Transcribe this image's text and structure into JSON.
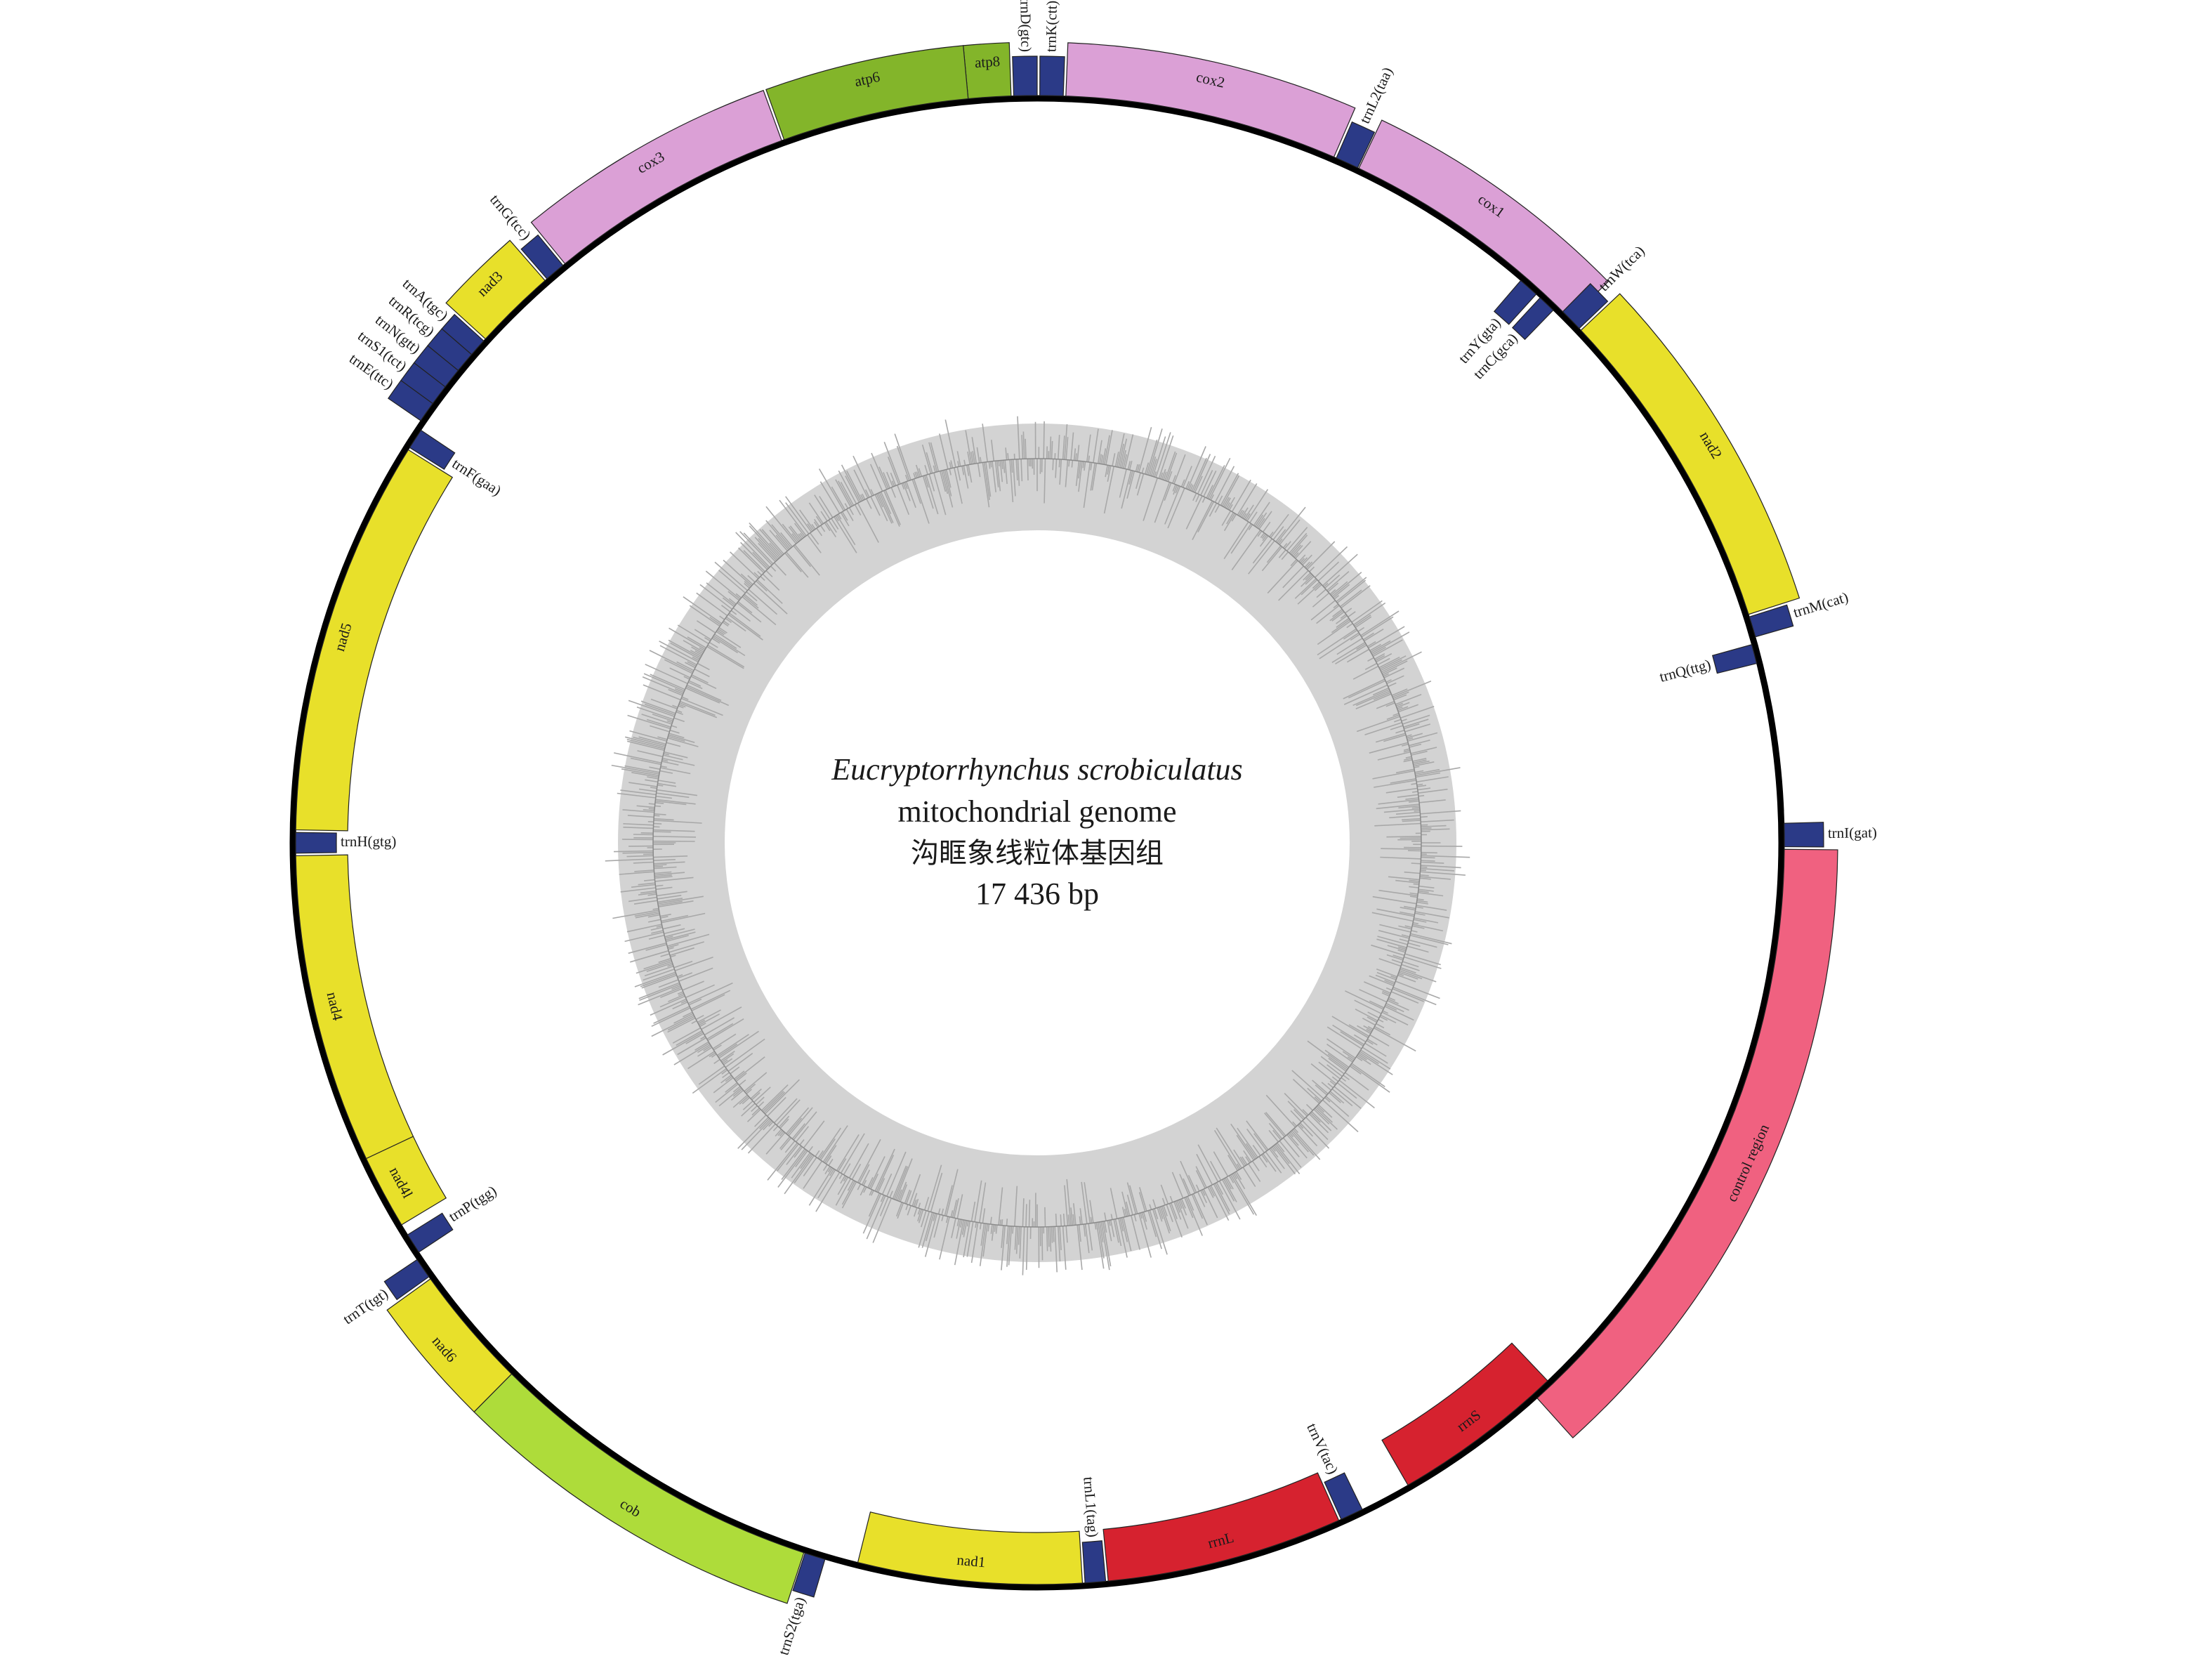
{
  "center": {
    "species": "Eucryptorrhynchus scrobiculatus",
    "line2": "mitochondrial genome",
    "line3": "沟眶象线粒体基因组",
    "line4": "17 436 bp"
  },
  "colors": {
    "trn": "#2b3a87",
    "pcg_yellow": "#e8e02a",
    "cox_pink": "#dba0d6",
    "atp_green": "#83b52a",
    "cob_green": "#aedc3a",
    "rrn_red": "#d6222f",
    "control_pink": "#f06180",
    "gc_ring": "#d3d3d3",
    "gc_bars": "#a8a8a8",
    "backbone": "#000000"
  },
  "genes": [
    {
      "name": "cox1",
      "start": 25.5,
      "end": 45.5,
      "strand": "outer",
      "color": "cox_pink"
    },
    {
      "name": "trnL2(taa)",
      "start": 23.6,
      "end": 25.4,
      "strand": "outer",
      "color": "trn"
    },
    {
      "name": "cox2",
      "start": 2.2,
      "end": 23.4,
      "strand": "outer",
      "color": "cox_pink"
    },
    {
      "name": "trnK(ctt)",
      "start": 0.2,
      "end": 2.0,
      "strand": "outer",
      "color": "trn"
    },
    {
      "name": "trnD(gtc)",
      "start": -1.8,
      "end": 0.0,
      "strand": "outer",
      "color": "trn"
    },
    {
      "name": "atp8",
      "start": -5.3,
      "end": -2.0,
      "strand": "outer",
      "color": "atp_green"
    },
    {
      "name": "atp6",
      "start": -19.8,
      "end": -5.3,
      "strand": "outer",
      "color": "atp_green"
    },
    {
      "name": "cox3",
      "start": -39.2,
      "end": -20.0,
      "strand": "outer",
      "color": "cox_pink"
    },
    {
      "name": "trnG(tcc)",
      "start": -41.0,
      "end": -39.4,
      "strand": "outer",
      "color": "trn"
    },
    {
      "name": "nad3",
      "start": -47.6,
      "end": -41.2,
      "strand": "outer",
      "color": "pcg_yellow"
    },
    {
      "name": "trnA(tgc)",
      "start": -49.2,
      "end": -47.8,
      "strand": "outer",
      "color": "trn"
    },
    {
      "name": "trnR(tcg)",
      "start": -50.8,
      "end": -49.2,
      "strand": "outer",
      "color": "trn"
    },
    {
      "name": "trnN(gtt)",
      "start": -52.4,
      "end": -50.8,
      "strand": "outer",
      "color": "trn"
    },
    {
      "name": "trnS1(tct)",
      "start": -54.0,
      "end": -52.4,
      "strand": "outer",
      "color": "trn"
    },
    {
      "name": "trnE(ttc)",
      "start": -55.6,
      "end": -54.0,
      "strand": "outer",
      "color": "trn"
    },
    {
      "name": "trnF(gaa)",
      "start": -57.8,
      "end": -56.2,
      "strand": "inner",
      "color": "trn"
    },
    {
      "name": "nad5",
      "start": -89.0,
      "end": -58.0,
      "strand": "inner",
      "color": "pcg_yellow"
    },
    {
      "name": "trnH(gtg)",
      "start": -90.8,
      "end": -89.2,
      "strand": "inner",
      "color": "trn"
    },
    {
      "name": "nad4",
      "start": -115.2,
      "end": -91.0,
      "strand": "inner",
      "color": "pcg_yellow"
    },
    {
      "name": "nad4l",
      "start": -121.0,
      "end": -115.2,
      "strand": "inner",
      "color": "pcg_yellow"
    },
    {
      "name": "trnP(tgg)",
      "start": -123.5,
      "end": -121.9,
      "strand": "inner",
      "color": "trn"
    },
    {
      "name": "trnT(tgt)",
      "start": -125.5,
      "end": -123.9,
      "strand": "outer",
      "color": "trn"
    },
    {
      "name": "nad6",
      "start": -135.3,
      "end": -125.7,
      "strand": "outer",
      "color": "pcg_yellow"
    },
    {
      "name": "cob",
      "start": -161.8,
      "end": -135.3,
      "strand": "outer",
      "color": "cob_green"
    },
    {
      "name": "trnS2(tga)",
      "start": -163.5,
      "end": -161.9,
      "strand": "outer",
      "color": "trn"
    },
    {
      "name": "nad1",
      "start": -183.5,
      "end": -166.0,
      "strand": "inner",
      "color": "pcg_yellow"
    },
    {
      "name": "trnL1(tag)",
      "start": -185.3,
      "end": -183.7,
      "strand": "inner",
      "color": "trn"
    },
    {
      "name": "rrnL",
      "start": -204.0,
      "end": -185.5,
      "strand": "inner",
      "color": "rrn_red"
    },
    {
      "name": "trnV(tac)",
      "start": -206.0,
      "end": -204.2,
      "strand": "inner",
      "color": "trn"
    },
    {
      "name": "rrnS",
      "start": -223.5,
      "end": -210.0,
      "strand": "inner",
      "color": "rrn_red"
    },
    {
      "name": "control region",
      "start": -269.5,
      "end": -222.0,
      "strand": "outer",
      "color": "control_pink"
    },
    {
      "name": "trnI(gat)",
      "start": -271.5,
      "end": -269.7,
      "strand": "outer",
      "color": "trn"
    },
    {
      "name": "trnQ(ttg)",
      "start": -285.5,
      "end": -284.0,
      "strand": "inner",
      "color": "trn"
    },
    {
      "name": "trnM(cat)",
      "start": -287.6,
      "end": -286.0,
      "strand": "outer",
      "color": "trn"
    },
    {
      "name": "nad2",
      "start": -313.3,
      "end": -287.8,
      "strand": "outer",
      "color": "pcg_yellow"
    },
    {
      "name": "trnW(tca)",
      "start": -315.3,
      "end": -313.5,
      "strand": "outer",
      "color": "trn"
    },
    {
      "name": "trnC(gca)",
      "start": -317.3,
      "end": -315.9,
      "strand": "inner",
      "color": "trn"
    },
    {
      "name": "trnY(gta)",
      "start": -319.3,
      "end": -317.7,
      "strand": "inner",
      "color": "trn"
    }
  ]
}
